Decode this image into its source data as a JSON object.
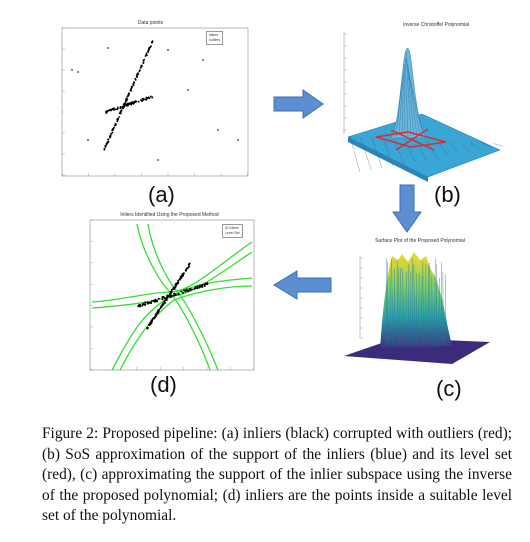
{
  "panels": {
    "a": {
      "title": "Data points",
      "label": "(a)",
      "legend": [
        "inliers",
        "outliers"
      ]
    },
    "b": {
      "title": "Inverse Christoffel Polynomial",
      "label": "(b)"
    },
    "c": {
      "title": "Surface Plot of the Proposed Polynomial",
      "label": "(c)"
    },
    "d": {
      "title": "Inliers Identified Using the Proposed Method",
      "label": "(d)",
      "legend": [
        "ID Inliers",
        "Level Set"
      ]
    }
  },
  "caption": {
    "text": "Figure 2: Proposed pipeline: (a) inliers (black) corrupted with outliers (red); (b) SoS approximation of the support of the inliers (blue) and its level set (red), (c) approximating the support of the inlier subspace using the inverse of the proposed polynomial; (d) inliers are the points inside a suitable level set of the polynomial."
  },
  "colors": {
    "arrow_fill": "#5b8fd1",
    "arrow_stroke": "#3a6fb5",
    "inlier": "#000000",
    "outlier": "#333333",
    "surface_blue": "#3aa6d6",
    "level_set_red": "#d0303a",
    "level_set_green": "#33dd33",
    "surface_yellow": "#f2d92a"
  },
  "icons": [
    "arrow-right-icon",
    "arrow-down-icon",
    "arrow-left-icon"
  ]
}
